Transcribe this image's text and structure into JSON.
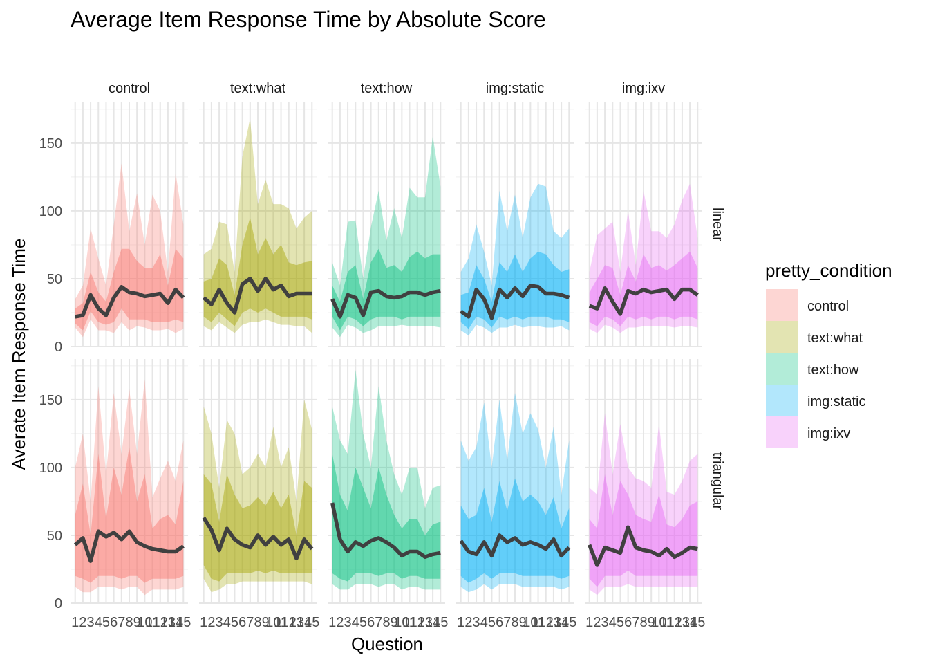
{
  "chart_data": {
    "type": "line",
    "subtype": "faceted line with quantile ribbons",
    "title": "Average Item Response Time by Absolute Score",
    "xlabel": "Question",
    "ylabel": "Averate Item Response Time",
    "x": [
      1,
      2,
      3,
      4,
      5,
      6,
      7,
      8,
      9,
      10,
      11,
      12,
      13,
      14,
      15
    ],
    "x_tick_labels": [
      "1",
      "2",
      "3",
      "4",
      "5",
      "6",
      "7",
      "8",
      "9",
      "10",
      "11",
      "12",
      "13",
      "14",
      "15"
    ],
    "ylim": [
      0,
      180
    ],
    "y_ticks": [
      0,
      50,
      100,
      150
    ],
    "y_tick_labels": [
      "0",
      "50",
      "100",
      "150"
    ],
    "grid": true,
    "columns": [
      "control",
      "text:what",
      "text:how",
      "img:static",
      "img:ixv"
    ],
    "rows": [
      "linear",
      "triangular"
    ],
    "legend": {
      "title": "pretty_condition",
      "position": "right",
      "entries": [
        "control",
        "text:what",
        "text:how",
        "img:static",
        "img:ixv"
      ],
      "colors": [
        "#F8766D",
        "#A3A500",
        "#00BF7D",
        "#00B0F6",
        "#E76BF3"
      ]
    },
    "line_color": "#404040",
    "panels": [
      {
        "row": "linear",
        "col": "control",
        "mean": [
          22,
          23,
          38,
          28,
          23,
          36,
          44,
          40,
          39,
          37,
          38,
          39,
          32,
          42,
          36
        ],
        "outer_hi": [
          35,
          45,
          87,
          65,
          45,
          90,
          135,
          85,
          113,
          75,
          112,
          100,
          55,
          128,
          90
        ],
        "outer_lo": [
          14,
          7,
          20,
          12,
          12,
          10,
          18,
          12,
          15,
          14,
          12,
          12,
          13,
          10,
          13
        ],
        "inner_hi": [
          28,
          32,
          55,
          40,
          33,
          55,
          72,
          72,
          63,
          58,
          58,
          68,
          45,
          72,
          65
        ],
        "inner_lo": [
          17,
          12,
          26,
          18,
          16,
          18,
          28,
          20,
          20,
          20,
          18,
          18,
          18,
          20,
          18
        ]
      },
      {
        "row": "linear",
        "col": "text:what",
        "mean": [
          36,
          31,
          42,
          32,
          25,
          46,
          50,
          41,
          50,
          42,
          45,
          37,
          39,
          39,
          39
        ],
        "outer_hi": [
          68,
          72,
          92,
          90,
          55,
          140,
          168,
          105,
          123,
          105,
          105,
          102,
          87,
          95,
          100
        ],
        "outer_lo": [
          15,
          12,
          18,
          14,
          10,
          16,
          18,
          18,
          20,
          18,
          16,
          16,
          15,
          15,
          10
        ],
        "inner_hi": [
          48,
          50,
          65,
          60,
          38,
          75,
          95,
          68,
          80,
          68,
          75,
          62,
          60,
          62,
          63
        ],
        "inner_lo": [
          22,
          18,
          25,
          20,
          15,
          25,
          28,
          25,
          28,
          25,
          22,
          22,
          22,
          22,
          20
        ]
      },
      {
        "row": "linear",
        "col": "text:how",
        "mean": [
          35,
          22,
          38,
          36,
          23,
          40,
          41,
          37,
          36,
          37,
          40,
          40,
          38,
          40,
          41
        ],
        "outer_hi": [
          62,
          45,
          92,
          93,
          50,
          88,
          115,
          78,
          102,
          80,
          117,
          110,
          110,
          155,
          118
        ],
        "outer_lo": [
          14,
          7,
          16,
          14,
          10,
          12,
          15,
          15,
          15,
          16,
          15,
          15,
          15,
          15,
          14
        ],
        "inner_hi": [
          45,
          33,
          55,
          60,
          35,
          62,
          72,
          58,
          60,
          55,
          66,
          70,
          65,
          68,
          68
        ],
        "inner_lo": [
          22,
          12,
          22,
          20,
          15,
          20,
          22,
          22,
          22,
          20,
          22,
          22,
          22,
          22,
          22
        ]
      },
      {
        "row": "linear",
        "col": "img:static",
        "mean": [
          26,
          22,
          42,
          35,
          21,
          42,
          36,
          43,
          37,
          45,
          44,
          39,
          39,
          38,
          36
        ],
        "outer_hi": [
          55,
          65,
          90,
          70,
          45,
          115,
          85,
          112,
          80,
          110,
          120,
          118,
          85,
          80,
          87
        ],
        "outer_lo": [
          12,
          8,
          16,
          14,
          10,
          14,
          14,
          16,
          14,
          15,
          15,
          14,
          14,
          15,
          12
        ],
        "inner_hi": [
          38,
          40,
          60,
          50,
          33,
          62,
          55,
          68,
          55,
          65,
          70,
          68,
          60,
          55,
          57
        ],
        "inner_lo": [
          18,
          13,
          22,
          20,
          14,
          22,
          20,
          22,
          20,
          22,
          22,
          22,
          20,
          20,
          18
        ]
      },
      {
        "row": "linear",
        "col": "img:ixv",
        "mean": [
          30,
          28,
          43,
          33,
          24,
          41,
          39,
          42,
          40,
          41,
          42,
          35,
          42,
          42,
          38
        ],
        "outer_hi": [
          55,
          82,
          87,
          92,
          55,
          100,
          60,
          115,
          85,
          85,
          80,
          90,
          108,
          120,
          80
        ],
        "outer_lo": [
          13,
          10,
          16,
          14,
          10,
          14,
          14,
          15,
          15,
          15,
          15,
          14,
          15,
          15,
          14
        ],
        "inner_hi": [
          40,
          50,
          60,
          58,
          38,
          60,
          48,
          68,
          58,
          60,
          56,
          60,
          65,
          70,
          58
        ],
        "inner_lo": [
          18,
          15,
          22,
          20,
          15,
          22,
          20,
          22,
          20,
          22,
          22,
          20,
          22,
          22,
          20
        ]
      },
      {
        "row": "triangular",
        "col": "control",
        "mean": [
          43,
          48,
          31,
          53,
          49,
          52,
          47,
          53,
          45,
          42,
          40,
          39,
          38,
          38,
          42
        ],
        "outer_hi": [
          100,
          125,
          75,
          160,
          95,
          155,
          110,
          158,
          110,
          165,
          78,
          92,
          105,
          90,
          120
        ],
        "outer_lo": [
          12,
          8,
          8,
          12,
          12,
          12,
          10,
          12,
          12,
          6,
          10,
          10,
          10,
          10,
          12
        ],
        "inner_hi": [
          65,
          88,
          50,
          110,
          62,
          100,
          80,
          115,
          75,
          95,
          55,
          62,
          65,
          58,
          90
        ],
        "inner_lo": [
          20,
          18,
          15,
          20,
          20,
          20,
          18,
          20,
          20,
          15,
          18,
          18,
          18,
          18,
          20
        ]
      },
      {
        "row": "triangular",
        "col": "text:what",
        "mean": [
          63,
          54,
          39,
          55,
          47,
          43,
          41,
          50,
          43,
          49,
          43,
          47,
          33,
          47,
          40
        ],
        "outer_hi": [
          145,
          125,
          85,
          135,
          125,
          95,
          100,
          110,
          100,
          130,
          100,
          115,
          75,
          150,
          128
        ],
        "outer_lo": [
          18,
          8,
          10,
          14,
          14,
          16,
          16,
          16,
          16,
          16,
          16,
          16,
          16,
          16,
          14
        ],
        "inner_hi": [
          95,
          88,
          60,
          95,
          80,
          70,
          72,
          78,
          72,
          82,
          70,
          80,
          50,
          90,
          85
        ],
        "inner_lo": [
          28,
          18,
          16,
          22,
          22,
          22,
          22,
          24,
          22,
          24,
          22,
          22,
          22,
          22,
          22
        ]
      },
      {
        "row": "triangular",
        "col": "text:how",
        "mean": [
          74,
          47,
          38,
          45,
          42,
          46,
          48,
          45,
          41,
          35,
          38,
          38,
          34,
          36,
          37
        ],
        "outer_hi": [
          145,
          120,
          110,
          172,
          125,
          100,
          160,
          120,
          95,
          80,
          100,
          100,
          70,
          85,
          87
        ],
        "outer_lo": [
          14,
          10,
          10,
          14,
          14,
          14,
          12,
          14,
          14,
          10,
          12,
          12,
          10,
          10,
          10
        ],
        "inner_hi": [
          110,
          80,
          68,
          100,
          85,
          70,
          100,
          80,
          65,
          55,
          62,
          62,
          50,
          58,
          60
        ],
        "inner_lo": [
          22,
          18,
          16,
          22,
          22,
          22,
          20,
          22,
          22,
          18,
          20,
          20,
          18,
          18,
          18
        ]
      },
      {
        "row": "triangular",
        "col": "img:static",
        "mean": [
          46,
          38,
          36,
          45,
          35,
          50,
          45,
          48,
          43,
          45,
          43,
          40,
          47,
          35,
          41
        ],
        "outer_hi": [
          120,
          105,
          115,
          148,
          100,
          150,
          105,
          155,
          125,
          140,
          128,
          100,
          130,
          80,
          120
        ],
        "outer_lo": [
          12,
          8,
          10,
          14,
          10,
          14,
          14,
          14,
          12,
          12,
          12,
          12,
          12,
          10,
          12
        ],
        "inner_hi": [
          72,
          62,
          65,
          85,
          60,
          90,
          68,
          92,
          75,
          80,
          75,
          65,
          78,
          55,
          70
        ],
        "inner_lo": [
          20,
          15,
          18,
          22,
          18,
          22,
          22,
          22,
          20,
          20,
          20,
          20,
          20,
          18,
          20
        ]
      },
      {
        "row": "triangular",
        "col": "img:ixv",
        "mean": [
          43,
          28,
          41,
          39,
          37,
          56,
          41,
          39,
          38,
          35,
          40,
          34,
          37,
          41,
          40
        ],
        "outer_hi": [
          85,
          80,
          140,
          95,
          132,
          100,
          92,
          90,
          85,
          132,
          82,
          80,
          90,
          105,
          110
        ],
        "outer_lo": [
          10,
          6,
          12,
          12,
          12,
          14,
          12,
          12,
          12,
          12,
          12,
          12,
          12,
          12,
          12
        ],
        "inner_hi": [
          62,
          55,
          95,
          65,
          90,
          80,
          65,
          62,
          60,
          80,
          58,
          56,
          62,
          72,
          75
        ],
        "inner_lo": [
          18,
          12,
          20,
          20,
          20,
          24,
          20,
          20,
          20,
          20,
          20,
          20,
          20,
          20,
          20
        ]
      }
    ]
  }
}
